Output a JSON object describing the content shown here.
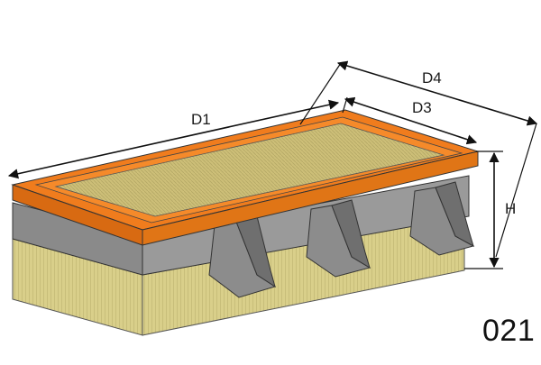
{
  "dimensions": {
    "d1": "D1",
    "d3": "D3",
    "d4": "D4",
    "h": "H"
  },
  "code": "021",
  "colors": {
    "frame": "#f07c1d",
    "frame_dark": "#c9600f",
    "media": "#d9cf8a",
    "media_dark": "#b8ad6a",
    "media_top": "#c9bf7a",
    "housing": "#8f8f8f",
    "housing_dark": "#6f6f6f",
    "outline": "#222222"
  },
  "icons": [
    "filter-body",
    "dimension-arrow"
  ]
}
